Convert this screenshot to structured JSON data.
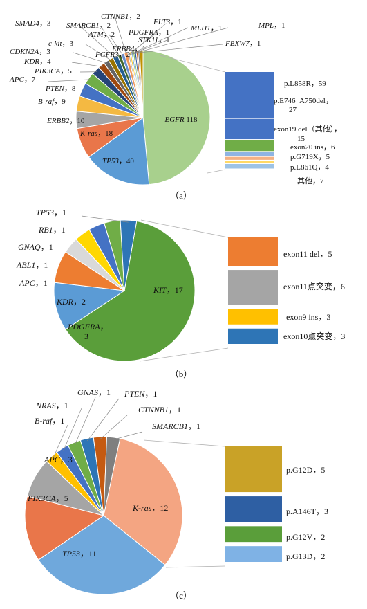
{
  "chart_data": [
    {
      "type": "pie",
      "panel_label": "（a）",
      "slices": [
        {
          "label_gene": "EGFR",
          "label_value": "118",
          "value": 118,
          "color": "#a8d08d"
        },
        {
          "label_gene": "TP53",
          "label_value": "40",
          "value": 40,
          "color": "#5b9bd5"
        },
        {
          "label_gene": "K-ras",
          "label_value": "18",
          "value": 18,
          "color": "#e9764a"
        },
        {
          "label_gene": "ERBB2",
          "label_value": "10",
          "value": 10,
          "color": "#a5a5a5"
        },
        {
          "label_gene": "B-raf",
          "label_value": "9",
          "value": 9,
          "color": "#f4b942"
        },
        {
          "label_gene": "PTEN",
          "label_value": "8",
          "value": 8,
          "color": "#4472c4"
        },
        {
          "label_gene": "APC",
          "label_value": "7",
          "value": 7,
          "color": "#70ad47"
        },
        {
          "label_gene": "PIK3CA",
          "label_value": "5",
          "value": 5,
          "color": "#264478"
        },
        {
          "label_gene": "KDR",
          "label_value": "4",
          "value": 4,
          "color": "#9e480e"
        },
        {
          "label_gene": "CDKN2A",
          "label_value": "3",
          "value": 3,
          "color": "#636363"
        },
        {
          "label_gene": "c-kit",
          "label_value": "3",
          "value": 3,
          "color": "#997300"
        },
        {
          "label_gene": "SMAD4",
          "label_value": "3",
          "value": 3,
          "color": "#255e91"
        },
        {
          "label_gene": "SMARCB1",
          "label_value": "2",
          "value": 2,
          "color": "#43682b"
        },
        {
          "label_gene": "ATM",
          "label_value": "2",
          "value": 2,
          "color": "#698ed0"
        },
        {
          "label_gene": "CTNNB1",
          "label_value": "2",
          "value": 2,
          "color": "#f1975a"
        },
        {
          "label_gene": "PDGFRA",
          "label_value": "1",
          "value": 1,
          "color": "#b7b7b7"
        },
        {
          "label_gene": "FLT3",
          "label_value": "1",
          "value": 1,
          "color": "#ffcd33"
        },
        {
          "label_gene": "MLH1",
          "label_value": "1",
          "value": 1,
          "color": "#7cafdd"
        },
        {
          "label_gene": "STK11",
          "label_value": "1",
          "value": 1,
          "color": "#8cc168"
        },
        {
          "label_gene": "MPL",
          "label_value": "1",
          "value": 1,
          "color": "#335aa1"
        },
        {
          "label_gene": "FBXW7",
          "label_value": "1",
          "value": 1,
          "color": "#c55a11"
        },
        {
          "label_gene": "ERBB4",
          "label_value": "1",
          "value": 1,
          "color": "#848484"
        },
        {
          "label_gene": "FGFR3",
          "label_value": "2",
          "value": 2,
          "color": "#bf9000"
        }
      ],
      "breakdown": [
        {
          "text": "p.L858R，59",
          "value": 59,
          "color": "#4472c4"
        },
        {
          "text": "p.E746_A750del，27",
          "value": 27,
          "color": "#4472c4"
        },
        {
          "text": "exon19 del（其他），15",
          "value": 15,
          "color": "#70ad47"
        },
        {
          "text": "exon20 ins，6",
          "value": 6,
          "color": "#8fb4e3"
        },
        {
          "text": "p.G719X，5",
          "value": 5,
          "color": "#f4b183"
        },
        {
          "text": "p.L861Q，4",
          "value": 4,
          "color": "#ffd966"
        },
        {
          "text": "其他，7",
          "value": 7,
          "color": "#9dc3e6"
        }
      ]
    },
    {
      "type": "pie",
      "panel_label": "（b）",
      "slices": [
        {
          "label_gene": "KIT",
          "label_value": "17",
          "value": 17,
          "color": "#5a9e3a"
        },
        {
          "label_gene": "PDGFRA",
          "label_value": "3",
          "value": 3,
          "color": "#5b9bd5"
        },
        {
          "label_gene": "KDR",
          "label_value": "2",
          "value": 2,
          "color": "#ed7d31"
        },
        {
          "label_gene": "APC",
          "label_value": "1",
          "value": 1,
          "color": "#d9d9d9"
        },
        {
          "label_gene": "ABL1",
          "label_value": "1",
          "value": 1,
          "color": "#ffd700"
        },
        {
          "label_gene": "GNAQ",
          "label_value": "1",
          "value": 1,
          "color": "#4472c4"
        },
        {
          "label_gene": "RB1",
          "label_value": "1",
          "value": 1,
          "color": "#70ad47"
        },
        {
          "label_gene": "TP53",
          "label_value": "1",
          "value": 1,
          "color": "#2e75b6"
        }
      ],
      "breakdown": [
        {
          "text": "exon11 del，5",
          "value": 5,
          "color": "#ed7d31"
        },
        {
          "text": "exon11点突变，6",
          "value": 6,
          "color": "#a5a5a5"
        },
        {
          "text": "exon9 ins，3",
          "value": 3,
          "color": "#ffc000"
        },
        {
          "text": "exon10点突变，3",
          "value": 3,
          "color": "#2e75b6"
        }
      ]
    },
    {
      "type": "pie",
      "panel_label": "（c）",
      "slices": [
        {
          "label_gene": "K-ras",
          "label_value": "12",
          "value": 12,
          "color": "#f4a582"
        },
        {
          "label_gene": "TP53",
          "label_value": "11",
          "value": 11,
          "color": "#6fa8dc"
        },
        {
          "label_gene": "PIK3CA",
          "label_value": "5",
          "value": 5,
          "color": "#e9764a"
        },
        {
          "label_gene": "APC",
          "label_value": "3",
          "value": 3,
          "color": "#a5a5a5"
        },
        {
          "label_gene": "B-raf",
          "label_value": "1",
          "value": 1,
          "color": "#ffc000"
        },
        {
          "label_gene": "NRAS",
          "label_value": "1",
          "value": 1,
          "color": "#4472c4"
        },
        {
          "label_gene": "GNAS",
          "label_value": "1",
          "value": 1,
          "color": "#70ad47"
        },
        {
          "label_gene": "PTEN",
          "label_value": "1",
          "value": 1,
          "color": "#2e75b6"
        },
        {
          "label_gene": "CTNNB1",
          "label_value": "1",
          "value": 1,
          "color": "#c55a11"
        },
        {
          "label_gene": "SMARCB1",
          "label_value": "1",
          "value": 1,
          "color": "#7f7f7f"
        }
      ],
      "breakdown": [
        {
          "text": "p.G12D，5",
          "value": 5,
          "color": "#c9a227"
        },
        {
          "text": "p.A146T，3",
          "value": 3,
          "color": "#2e5fa3"
        },
        {
          "text": "p.G12V，2",
          "value": 2,
          "color": "#5a9e3a"
        },
        {
          "text": "p.G13D，2",
          "value": 2,
          "color": "#7fb2e5"
        }
      ]
    }
  ]
}
